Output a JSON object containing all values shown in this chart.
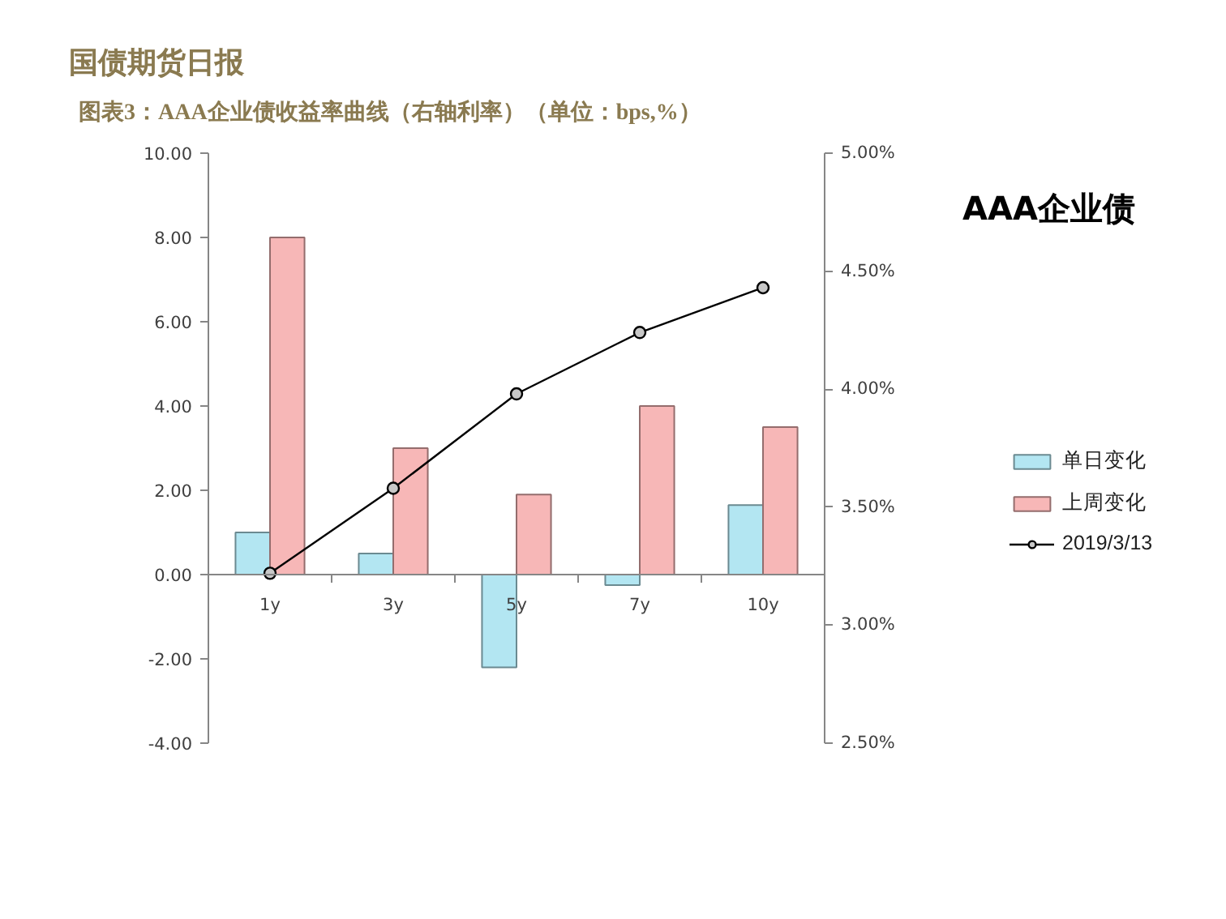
{
  "chart_data": {
    "type": "bar",
    "title": "图表3：AAA企业债收益率曲线（右轴利率）（单位：bps,%）",
    "annotations": [
      "国债期货日报",
      "AAA企业债"
    ],
    "categories": [
      "1y",
      "3y",
      "5y",
      "7y",
      "10y"
    ],
    "series": [
      {
        "name": "单日变化",
        "color": "#b3e6f2",
        "values": [
          1.0,
          0.5,
          -2.2,
          -0.25,
          1.65
        ]
      },
      {
        "name": "上周变化",
        "color": "#f7b7b7",
        "values": [
          8.0,
          3.0,
          1.9,
          4.0,
          3.5
        ]
      },
      {
        "name": "2019/3/13",
        "type": "line",
        "axis": "y2",
        "color": "#000000",
        "values": [
          3.22,
          3.58,
          3.98,
          4.24,
          4.43
        ]
      }
    ],
    "ylim": [
      -4,
      10
    ],
    "yticks": [
      {
        "value": -4,
        "label": "-4.00"
      },
      {
        "value": -2,
        "label": "-2.00"
      },
      {
        "value": 0,
        "label": "0.00"
      },
      {
        "value": 2,
        "label": "2.00"
      },
      {
        "value": 4,
        "label": "4.00"
      },
      {
        "value": 6,
        "label": "6.00"
      },
      {
        "value": 8,
        "label": "8.00"
      },
      {
        "value": 10,
        "label": "10.00"
      }
    ],
    "y2lim": [
      2.5,
      5
    ],
    "y2ticks": [
      {
        "value": 2.5,
        "label": "2.50%"
      },
      {
        "value": 3,
        "label": "3.00%"
      },
      {
        "value": 3.5,
        "label": "3.50%"
      },
      {
        "value": 4,
        "label": "4.00%"
      },
      {
        "value": 4.5,
        "label": "4.50%"
      },
      {
        "value": 5,
        "label": "5.00%"
      }
    ],
    "grid": false,
    "legend": "right",
    "marker": "circle"
  }
}
